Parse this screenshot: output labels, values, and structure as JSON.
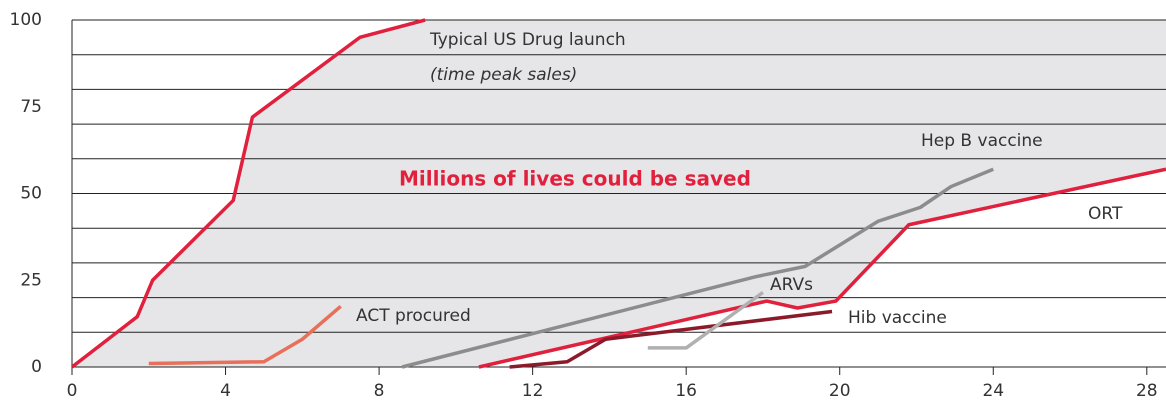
{
  "chart_data": {
    "type": "line",
    "xlim": [
      0,
      28.5
    ],
    "xticks": [
      0,
      4,
      8,
      12,
      16,
      20,
      24,
      28
    ],
    "ylim": [
      0,
      100
    ],
    "yticks": [
      0,
      25,
      50,
      75,
      100
    ],
    "ygrid": [
      0,
      10,
      20,
      30,
      40,
      50,
      60,
      70,
      80,
      90,
      100
    ],
    "grid": true,
    "shade_color": "#e6e6e8",
    "annotations": [
      "(time peak sales)",
      "Millions of lives could be saved"
    ],
    "series": [
      {
        "name": "Typical US Drug launch",
        "color": "#e0203c",
        "x": [
          0,
          1.7,
          2.1,
          4.2,
          4.7,
          7.5,
          9.2
        ],
        "values": [
          0,
          14.5,
          25,
          48,
          72,
          95,
          100
        ]
      },
      {
        "name": "ACT procured",
        "color": "#e8705a",
        "x": [
          2.0,
          5.0,
          6.0,
          7.0
        ],
        "values": [
          1,
          1.5,
          8,
          17.5
        ]
      },
      {
        "name": "Hep B vaccine",
        "color": "#8c8c8c",
        "x": [
          8.6,
          17.8,
          19.1,
          21,
          22.1,
          22.9,
          24
        ],
        "values": [
          0,
          26,
          29,
          42,
          46,
          52,
          57
        ]
      },
      {
        "name": "ORT",
        "color": "#e0203c",
        "x": [
          10.6,
          18.1,
          18.9,
          19.9,
          21.8,
          28.5
        ],
        "values": [
          0,
          19,
          17,
          19,
          41,
          57
        ]
      },
      {
        "name": "Hib vaccine",
        "color": "#8b1a2a",
        "x": [
          11.4,
          12.9,
          13.9,
          19.8
        ],
        "values": [
          0,
          1.5,
          8,
          16
        ]
      },
      {
        "name": "ARVs",
        "color": "#b0b0b0",
        "x": [
          15,
          16,
          18
        ],
        "values": [
          5.5,
          5.5,
          21.5
        ]
      }
    ]
  }
}
